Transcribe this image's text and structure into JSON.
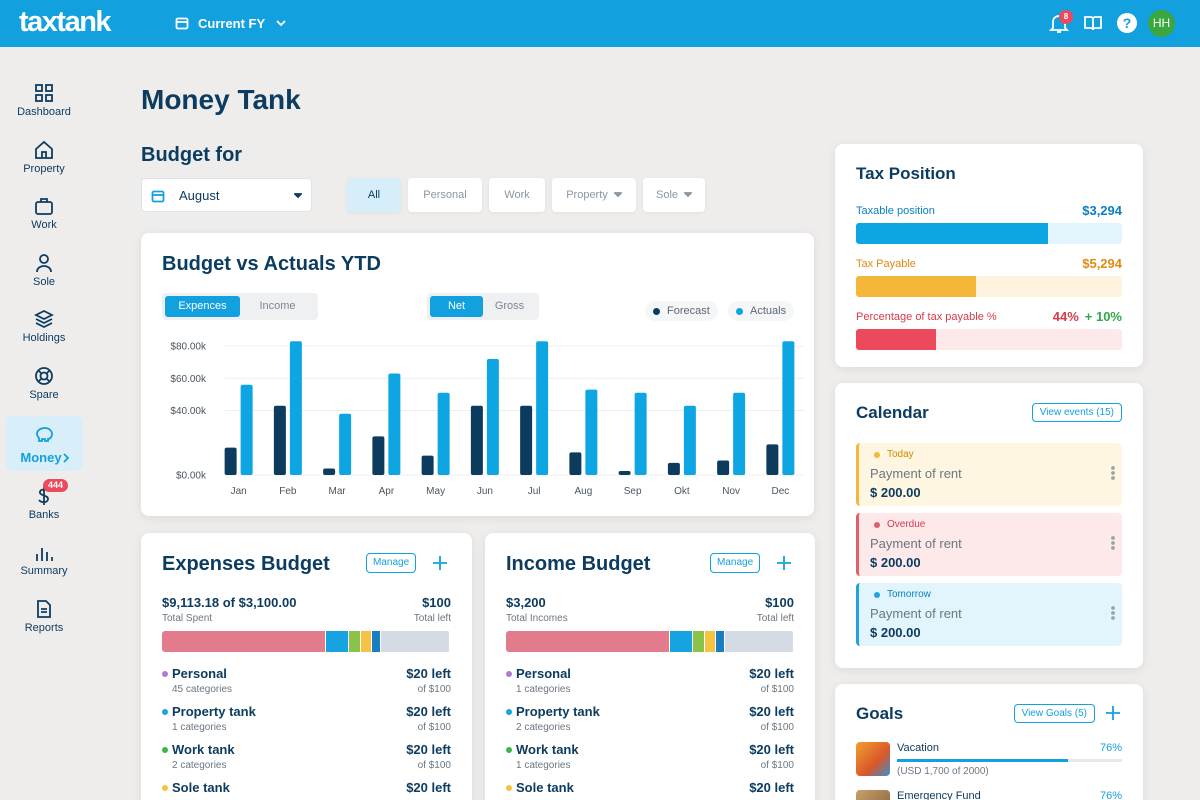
{
  "header": {
    "logo": "taxtank",
    "fiscal_year": "Current FY",
    "notifications": "8",
    "help": "?",
    "avatar": "HH"
  },
  "sidebar": {
    "items": [
      "Dashboard",
      "Property",
      "Work",
      "Sole",
      "Holdings",
      "Spare",
      "Money",
      "Banks",
      "Summary",
      "Reports"
    ],
    "active": 6,
    "banks_badge": "444"
  },
  "page": {
    "title": "Money Tank",
    "budget_for": "Budget for",
    "month": "August",
    "filters": [
      "All",
      "Personal",
      "Work",
      "Property",
      "Sole"
    ],
    "active_filter": 0
  },
  "chart_data": {
    "type": "bar",
    "title": "Budget vs Actuals YTD",
    "toggles": [
      [
        "Expences",
        "Income"
      ],
      [
        "Net",
        "Gross"
      ]
    ],
    "categories": [
      "Jan",
      "Feb",
      "Mar",
      "Apr",
      "May",
      "Jun",
      "Jul",
      "Aug",
      "Sep",
      "Okt",
      "Nov",
      "Dec"
    ],
    "series": [
      {
        "name": "Forecast",
        "color": "#0d3b5e",
        "values": [
          17000,
          43000,
          4000,
          24000,
          12000,
          43000,
          43000,
          14000,
          2500,
          7500,
          9000,
          19000
        ]
      },
      {
        "name": "Actuals",
        "color": "#0ea5e3",
        "values": [
          56000,
          83000,
          38000,
          63000,
          51000,
          72000,
          83000,
          53000,
          51000,
          43000,
          51000,
          83000
        ]
      }
    ],
    "ylim": [
      0,
      85000
    ],
    "yticks": [
      {
        "value": 0,
        "label": "$0.00k"
      },
      {
        "value": 40000,
        "label": "$40.00k"
      },
      {
        "value": 60000,
        "label": "$60.00k"
      },
      {
        "value": 80000,
        "label": "$80.00k"
      }
    ],
    "grid": true
  },
  "tax_position": {
    "title": "Tax Position",
    "rows": [
      {
        "label": "Taxable position",
        "value": "$3,294",
        "progress": 72,
        "color": "#0ea5e3",
        "track": "#e3f4fc"
      },
      {
        "label": "Tax Payable",
        "value": "$5,294",
        "progress": 45,
        "color": "#f4b73a",
        "track": "#fdf3df"
      },
      {
        "label": "Percentage of tax payable %",
        "value": "44%",
        "change": "+ 10%",
        "progress": 30,
        "color": "#ec4a5c",
        "track": "#fde8ea"
      }
    ]
  },
  "calendar": {
    "title": "Calendar",
    "button": "View events (15)",
    "events": [
      {
        "status": "Today",
        "description": "Payment of rent",
        "amount": "$ 200.00"
      },
      {
        "status": "Overdue",
        "description": "Payment of rent",
        "amount": "$ 200.00"
      },
      {
        "status": "Tomorrow",
        "description": "Payment of rent",
        "amount": "$ 200.00"
      }
    ]
  },
  "expenses_budget": {
    "title": "Expenses Budget",
    "button": "Manage",
    "total": "$9,113.18 of $3,100.00",
    "total_label": "Total Spent",
    "left": "$100",
    "left_label": "Total left",
    "segments": [
      {
        "share": 57,
        "color": "#e27b8b"
      },
      {
        "share": 8,
        "color": "#17a2e0"
      },
      {
        "share": 4,
        "color": "#8bc34a"
      },
      {
        "share": 4,
        "color": "#f5c342"
      },
      {
        "share": 3,
        "color": "#1a7fc0"
      },
      {
        "share": 24,
        "color": "#d5dbe4"
      }
    ],
    "categories": [
      {
        "name": "Personal",
        "count": "45 categories",
        "left": "$20 left",
        "of": "of $100",
        "color": "#b07ad0"
      },
      {
        "name": "Property tank",
        "count": "1 categories",
        "left": "$20 left",
        "of": "of $100",
        "color": "#17a2e0"
      },
      {
        "name": "Work tank",
        "count": "2 categories",
        "left": "$20 left",
        "of": "of $100",
        "color": "#3bb54a"
      },
      {
        "name": "Sole tank",
        "left": "$20 left",
        "color": "#f5c342"
      }
    ]
  },
  "income_budget": {
    "title": "Income Budget",
    "button": "Manage",
    "total": "$3,200",
    "total_label": "Total Incomes",
    "left": "$100",
    "left_label": "Total left",
    "segments": [
      {
        "share": 57,
        "color": "#e27b8b"
      },
      {
        "share": 8,
        "color": "#17a2e0"
      },
      {
        "share": 4,
        "color": "#8bc34a"
      },
      {
        "share": 4,
        "color": "#f5c342"
      },
      {
        "share": 3,
        "color": "#1a7fc0"
      },
      {
        "share": 24,
        "color": "#d5dbe4"
      }
    ],
    "categories": [
      {
        "name": "Personal",
        "count": "1 categories",
        "left": "$20 left",
        "of": "of $100",
        "color": "#b07ad0"
      },
      {
        "name": "Property tank",
        "count": "2 categories",
        "left": "$20 left",
        "of": "of $100",
        "color": "#17a2e0"
      },
      {
        "name": "Work tank",
        "count": "1 categories",
        "left": "$20 left",
        "of": "of $100",
        "color": "#3bb54a"
      },
      {
        "name": "Sole tank",
        "left": "$20 left",
        "color": "#f5c342"
      }
    ]
  },
  "goals": {
    "title": "Goals",
    "button": "View Goals (5)",
    "items": [
      {
        "name": "Vacation",
        "detail": "(USD 1,700 of 2000)",
        "progress": 76,
        "progress_label": "76%"
      },
      {
        "name": "Emergency Fund",
        "progress": 76,
        "progress_label": "76%"
      }
    ]
  }
}
